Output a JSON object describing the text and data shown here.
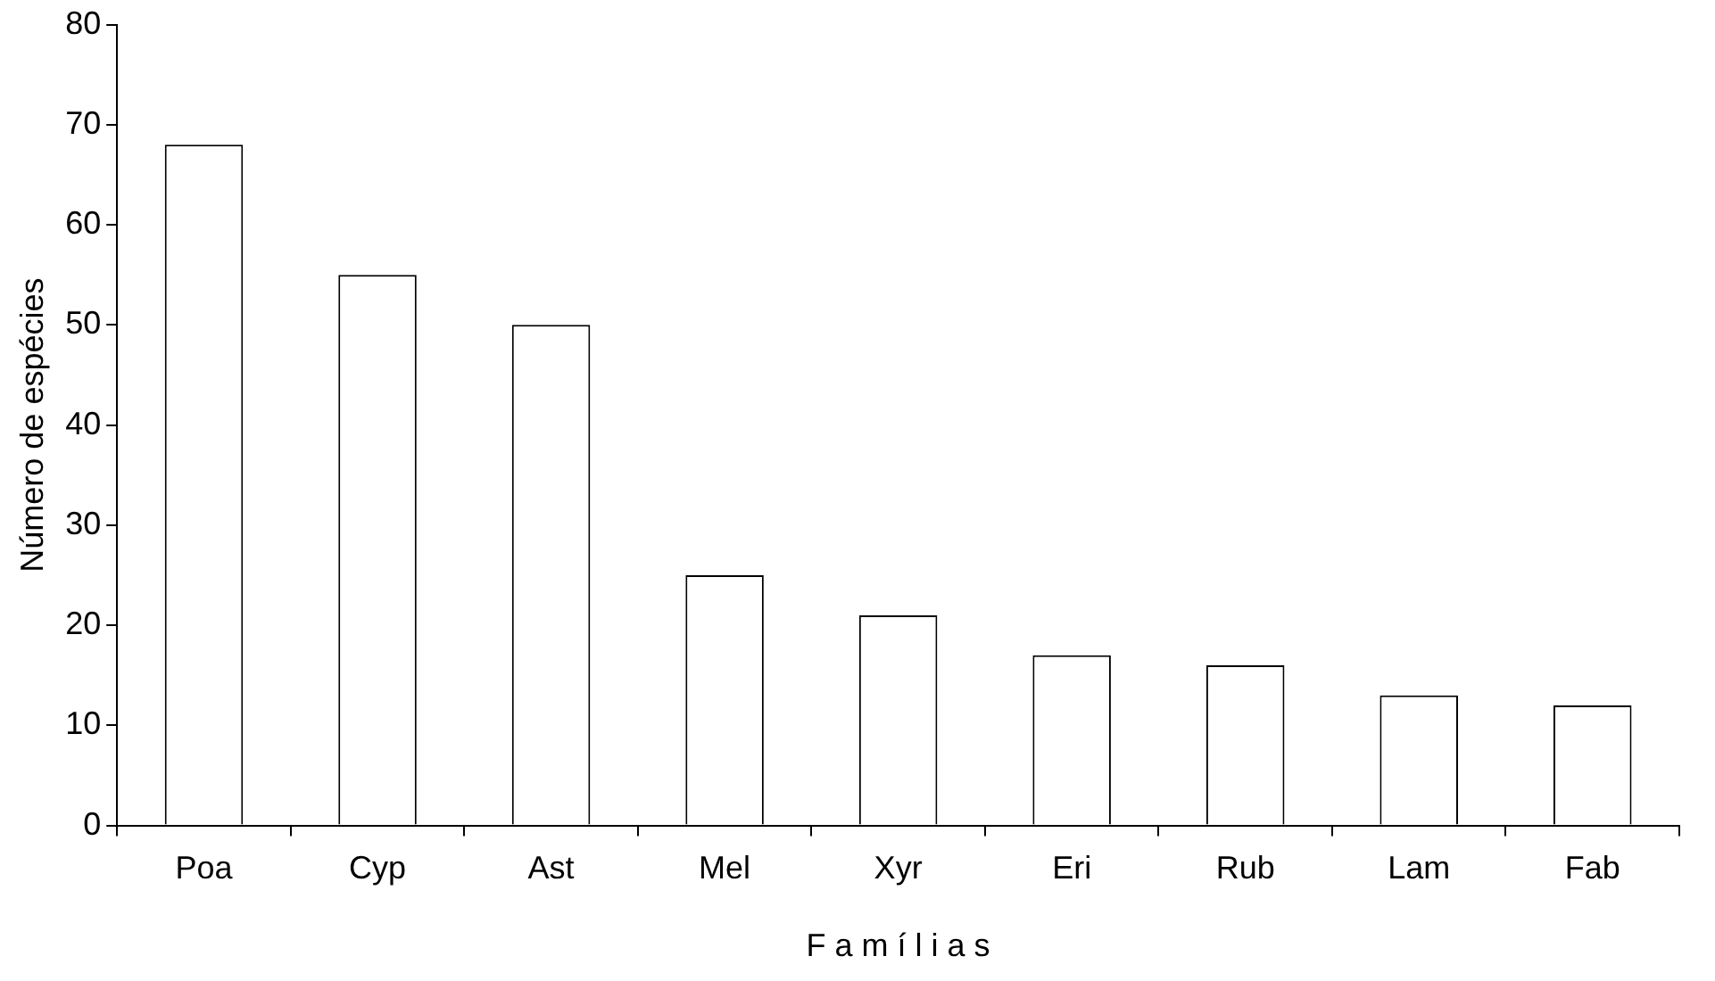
{
  "chart_data": {
    "type": "bar",
    "xlabel": "F a m í l i a s",
    "ylabel": "Número de espécies",
    "categories": [
      "Poa",
      "Cyp",
      "Ast",
      "Mel",
      "Xyr",
      "Eri",
      "Rub",
      "Lam",
      "Fab"
    ],
    "values": [
      68,
      55,
      50,
      25,
      21,
      17,
      16,
      13,
      12
    ],
    "color": "#ffffff",
    "ylim": [
      0,
      80
    ],
    "yticks": [
      0,
      10,
      20,
      30,
      40,
      50,
      60,
      70,
      80
    ],
    "grid": false,
    "legend": false
  }
}
